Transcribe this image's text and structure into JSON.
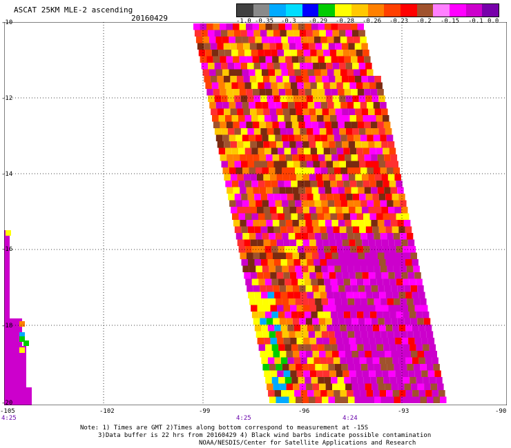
{
  "header": {
    "title": "ASCAT 25KM MLE-2 ascending",
    "date": "20160429"
  },
  "colorbar": {
    "colors": [
      "#404040",
      "#8a8a8a",
      "#00aaff",
      "#00ddff",
      "#0000ff",
      "#00cc00",
      "#ffff00",
      "#ffc800",
      "#ff8000",
      "#ff4000",
      "#ff0000",
      "#a0522d",
      "#ff80ff",
      "#ff00ff",
      "#cc00cc",
      "#7700aa"
    ],
    "labels": [
      "-1.0",
      "-0.35",
      "-0.3",
      "-0.29",
      "-0.28",
      "-0.26",
      "-0.23",
      "-0.2",
      "-0.15",
      "-0.1",
      "0.0"
    ]
  },
  "axes": {
    "y_labels": [
      "-10",
      "-12",
      "-14",
      "-16",
      "-18",
      "-20"
    ],
    "x_labels": [
      "-105",
      "-102",
      "-99",
      "-96",
      "-93",
      "-90"
    ],
    "times": [
      "4:25",
      "4:25",
      "4:24"
    ]
  },
  "notes": [
    "Note: 1) Times are GMT 2)Times along bottom correspond to measurement at -15S",
    "3)Data buffer is 22 hrs from 20160429 4) Black wind barbs indicate possible contamination",
    "NOAA/NESDIS/Center for Satellite Applications and Research"
  ]
}
